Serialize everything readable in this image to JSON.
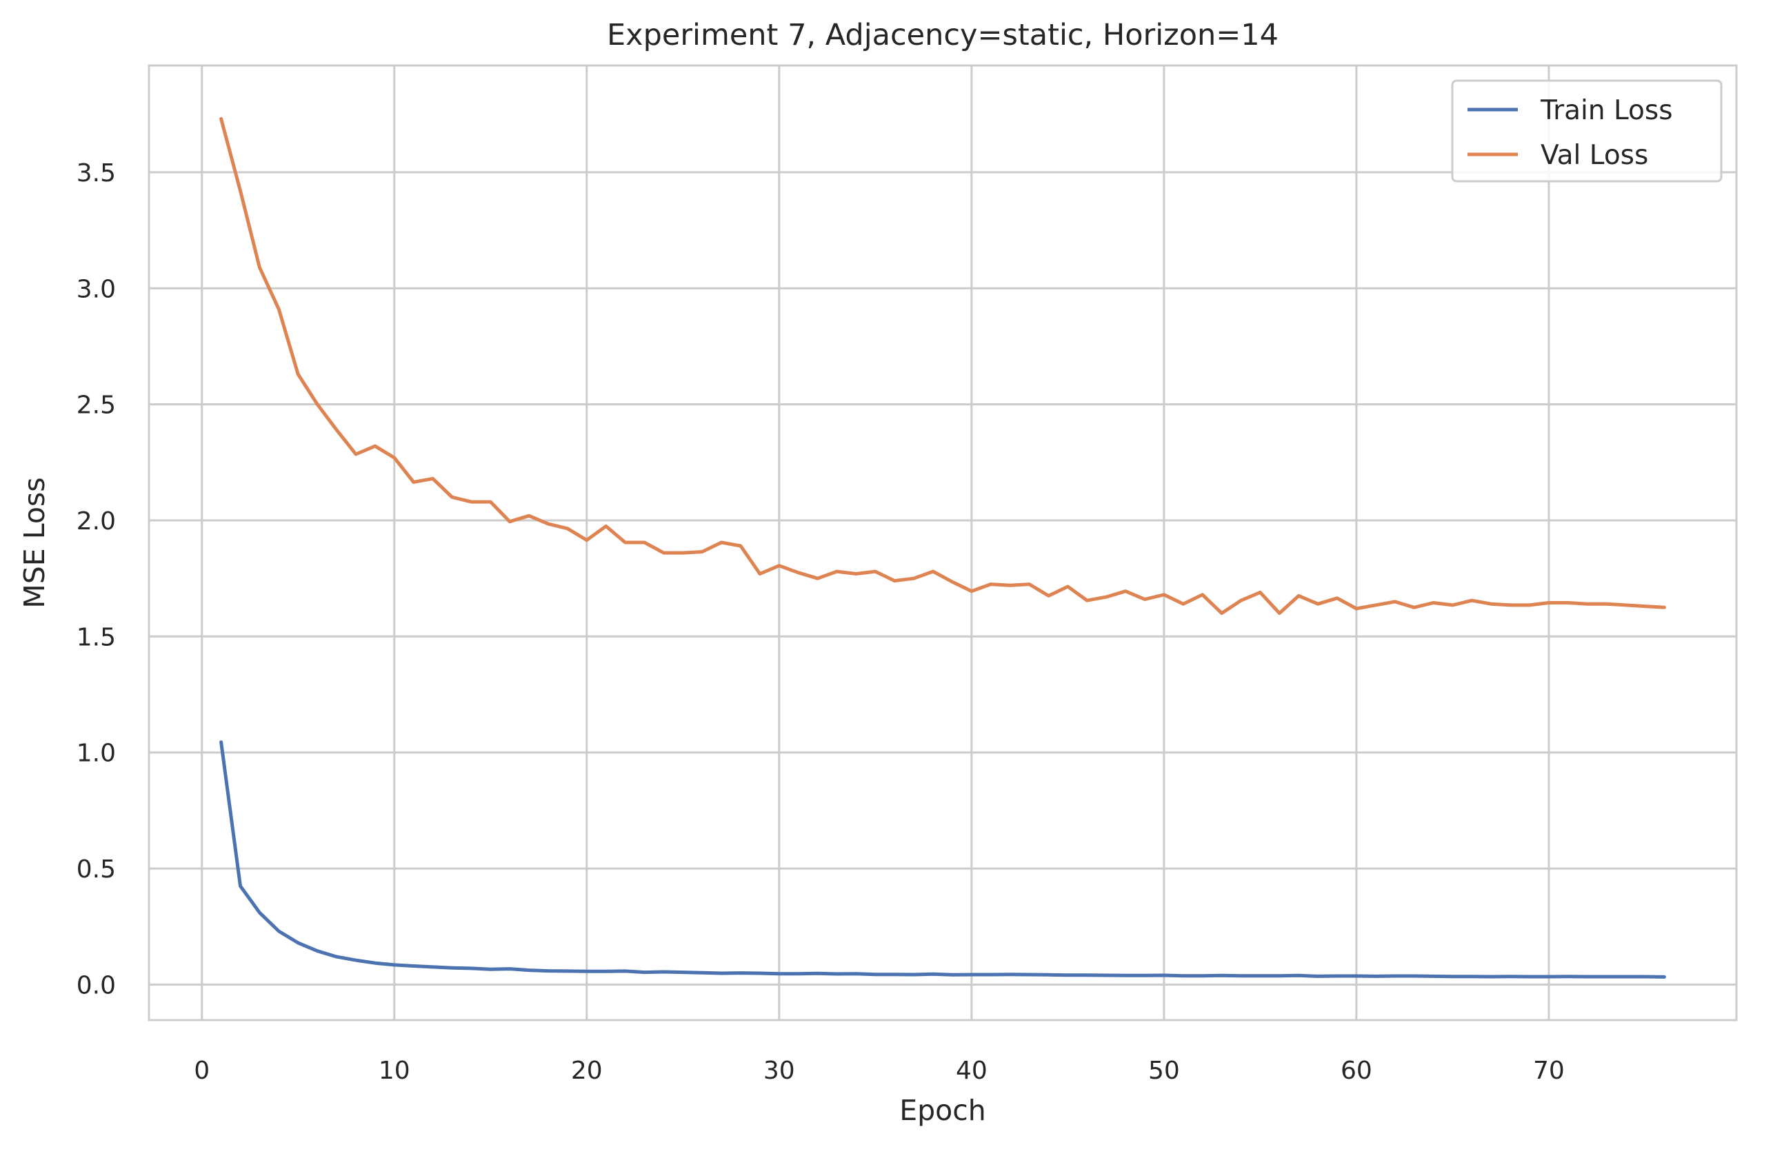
{
  "chart_data": {
    "type": "line",
    "title": "Experiment 7, Adjacency=static, Horizon=14",
    "xlabel": "Epoch",
    "ylabel": "MSE Loss",
    "xlim": [
      -2.75,
      79.75
    ],
    "ylim": [
      -0.153,
      3.96
    ],
    "xticks": [
      0,
      10,
      20,
      30,
      40,
      50,
      60,
      70
    ],
    "yticks": [
      0.0,
      0.5,
      1.0,
      1.5,
      2.0,
      2.5,
      3.0,
      3.5
    ],
    "grid": true,
    "legend_position": "top-right",
    "x": [
      1,
      2,
      3,
      4,
      5,
      6,
      7,
      8,
      9,
      10,
      11,
      12,
      13,
      14,
      15,
      16,
      17,
      18,
      19,
      20,
      21,
      22,
      23,
      24,
      25,
      26,
      27,
      28,
      29,
      30,
      31,
      32,
      33,
      34,
      35,
      36,
      37,
      38,
      39,
      40,
      41,
      42,
      43,
      44,
      45,
      46,
      47,
      48,
      49,
      50,
      51,
      52,
      53,
      54,
      55,
      56,
      57,
      58,
      59,
      60,
      61,
      62,
      63,
      64,
      65,
      66,
      67,
      68,
      69,
      70,
      71,
      72,
      73,
      74,
      75,
      76
    ],
    "series": [
      {
        "name": "Train Loss",
        "color": "#4c72b0",
        "values": [
          1.045,
          0.425,
          0.31,
          0.23,
          0.18,
          0.145,
          0.12,
          0.105,
          0.093,
          0.085,
          0.08,
          0.076,
          0.072,
          0.07,
          0.066,
          0.068,
          0.062,
          0.059,
          0.058,
          0.057,
          0.057,
          0.058,
          0.053,
          0.055,
          0.053,
          0.051,
          0.049,
          0.05,
          0.049,
          0.047,
          0.047,
          0.048,
          0.046,
          0.047,
          0.044,
          0.044,
          0.043,
          0.045,
          0.042,
          0.043,
          0.043,
          0.044,
          0.043,
          0.042,
          0.041,
          0.041,
          0.04,
          0.039,
          0.039,
          0.04,
          0.038,
          0.038,
          0.039,
          0.038,
          0.038,
          0.038,
          0.039,
          0.036,
          0.037,
          0.037,
          0.036,
          0.037,
          0.037,
          0.036,
          0.035,
          0.035,
          0.034,
          0.035,
          0.034,
          0.034,
          0.035,
          0.034,
          0.034,
          0.034,
          0.034,
          0.033
        ]
      },
      {
        "name": "Val Loss",
        "color": "#dd8452",
        "values": [
          3.73,
          3.42,
          3.09,
          2.91,
          2.63,
          2.5,
          2.39,
          2.285,
          2.32,
          2.27,
          2.165,
          2.18,
          2.1,
          2.08,
          2.08,
          1.995,
          2.02,
          1.985,
          1.965,
          1.915,
          1.975,
          1.905,
          1.905,
          1.86,
          1.86,
          1.865,
          1.905,
          1.89,
          1.77,
          1.805,
          1.775,
          1.75,
          1.78,
          1.77,
          1.78,
          1.74,
          1.75,
          1.78,
          1.735,
          1.695,
          1.725,
          1.72,
          1.725,
          1.675,
          1.715,
          1.655,
          1.67,
          1.695,
          1.66,
          1.68,
          1.64,
          1.68,
          1.6,
          1.655,
          1.69,
          1.6,
          1.675,
          1.64,
          1.665,
          1.62,
          1.635,
          1.65,
          1.625,
          1.645,
          1.635,
          1.655,
          1.64,
          1.635,
          1.635,
          1.645,
          1.645,
          1.64,
          1.64,
          1.635,
          1.63,
          1.625
        ]
      }
    ]
  }
}
